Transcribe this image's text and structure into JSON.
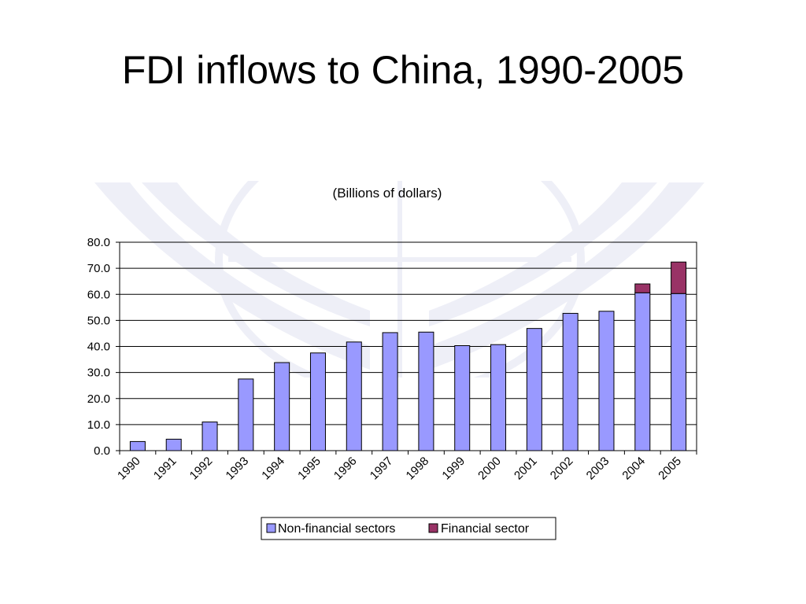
{
  "slide": {
    "title": "FDI inflows to China, 1990-2005"
  },
  "chart_data": {
    "type": "bar",
    "stacked": true,
    "subtitle": "(Billions of dollars)",
    "categories": [
      "1990",
      "1991",
      "1992",
      "1993",
      "1994",
      "1995",
      "1996",
      "1997",
      "1998",
      "1999",
      "2000",
      "2001",
      "2002",
      "2003",
      "2004",
      "2005"
    ],
    "series": [
      {
        "name": "Non-financial sectors",
        "color": "#9999ff",
        "values": [
          3.5,
          4.4,
          11.0,
          27.5,
          33.8,
          37.5,
          41.7,
          45.3,
          45.5,
          40.3,
          40.7,
          46.9,
          52.7,
          53.5,
          60.6,
          60.3
        ]
      },
      {
        "name": "Financial sector",
        "color": "#993366",
        "values": [
          0,
          0,
          0,
          0,
          0,
          0,
          0,
          0,
          0,
          0,
          0,
          0,
          0,
          0,
          3.4,
          12.1
        ]
      }
    ],
    "ylim": [
      0,
      80
    ],
    "yticks": [
      "0.0",
      "10.0",
      "20.0",
      "30.0",
      "40.0",
      "50.0",
      "60.0",
      "70.0",
      "80.0"
    ],
    "grid": true,
    "legend_position": "bottom"
  }
}
